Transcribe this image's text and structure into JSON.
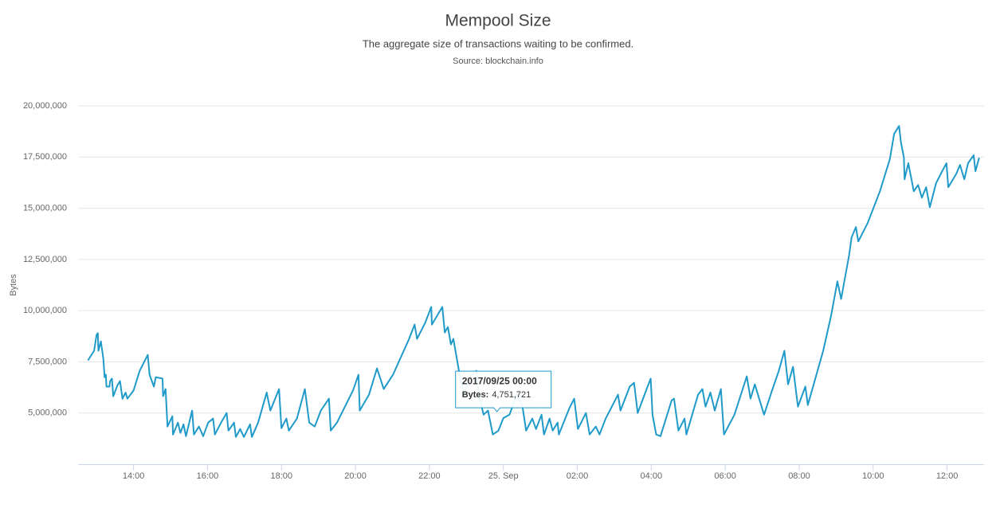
{
  "chart_data": {
    "type": "line",
    "title": "Mempool Size",
    "subtitle": "The aggregate size of transactions waiting to be confirmed.",
    "source": "Source: blockchain.info",
    "y_label": "Bytes",
    "grid": true,
    "xlim": [
      "2017-09-24 12:30",
      "2017-09-25 13:00"
    ],
    "xticks": [
      {
        "value": "2017-09-24 14:00",
        "label": "14:00"
      },
      {
        "value": "2017-09-24 16:00",
        "label": "16:00"
      },
      {
        "value": "2017-09-24 18:00",
        "label": "18:00"
      },
      {
        "value": "2017-09-24 20:00",
        "label": "20:00"
      },
      {
        "value": "2017-09-24 22:00",
        "label": "22:00"
      },
      {
        "value": "2017-09-25 00:00",
        "label": "25. Sep"
      },
      {
        "value": "2017-09-25 02:00",
        "label": "02:00"
      },
      {
        "value": "2017-09-25 04:00",
        "label": "04:00"
      },
      {
        "value": "2017-09-25 06:00",
        "label": "06:00"
      },
      {
        "value": "2017-09-25 08:00",
        "label": "08:00"
      },
      {
        "value": "2017-09-25 10:00",
        "label": "10:00"
      },
      {
        "value": "2017-09-25 12:00",
        "label": "12:00"
      }
    ],
    "ylim": [
      2500000,
      20000000
    ],
    "yticks": [
      {
        "value": 5000000,
        "label": "5,000,000"
      },
      {
        "value": 7500000,
        "label": "7,500,000"
      },
      {
        "value": 10000000,
        "label": "10,000,000"
      },
      {
        "value": 12500000,
        "label": "12,500,000"
      },
      {
        "value": 15000000,
        "label": "15,000,000"
      },
      {
        "value": 17500000,
        "label": "17,500,000"
      },
      {
        "value": 20000000,
        "label": "20,000,000"
      }
    ],
    "x": [
      "2017-09-24 12:46",
      "2017-09-24 12:56",
      "2017-09-24 13:00",
      "2017-09-24 13:02",
      "2017-09-24 13:03",
      "2017-09-24 13:07",
      "2017-09-24 13:11",
      "2017-09-24 13:13",
      "2017-09-24 13:15",
      "2017-09-24 13:16",
      "2017-09-24 13:21",
      "2017-09-24 13:22",
      "2017-09-24 13:25",
      "2017-09-24 13:27",
      "2017-09-24 13:34",
      "2017-09-24 13:38",
      "2017-09-24 13:42",
      "2017-09-24 13:47",
      "2017-09-24 13:50",
      "2017-09-24 14:00",
      "2017-09-24 14:10",
      "2017-09-24 14:23",
      "2017-09-24 14:26",
      "2017-09-24 14:33",
      "2017-09-24 14:36",
      "2017-09-24 14:47",
      "2017-09-24 14:48",
      "2017-09-24 14:52",
      "2017-09-24 14:55",
      "2017-09-24 15:03",
      "2017-09-24 15:04",
      "2017-09-24 15:12",
      "2017-09-24 15:16",
      "2017-09-24 15:21",
      "2017-09-24 15:25",
      "2017-09-24 15:35",
      "2017-09-24 15:38",
      "2017-09-24 15:46",
      "2017-09-24 15:53",
      "2017-09-24 16:01",
      "2017-09-24 16:09",
      "2017-09-24 16:12",
      "2017-09-24 16:22",
      "2017-09-24 16:31",
      "2017-09-24 16:34",
      "2017-09-24 16:43",
      "2017-09-24 16:46",
      "2017-09-24 16:53",
      "2017-09-24 16:59",
      "2017-09-24 17:09",
      "2017-09-24 17:12",
      "2017-09-24 17:22",
      "2017-09-24 17:36",
      "2017-09-24 17:42",
      "2017-09-24 17:56",
      "2017-09-24 18:00",
      "2017-09-24 18:08",
      "2017-09-24 18:12",
      "2017-09-24 18:25",
      "2017-09-24 18:38",
      "2017-09-24 18:45",
      "2017-09-24 18:54",
      "2017-09-24 19:04",
      "2017-09-24 19:17",
      "2017-09-24 19:20",
      "2017-09-24 19:30",
      "2017-09-24 19:56",
      "2017-09-24 20:05",
      "2017-09-24 20:07",
      "2017-09-24 20:22",
      "2017-09-24 20:35",
      "2017-09-24 20:46",
      "2017-09-24 21:01",
      "2017-09-24 21:27",
      "2017-09-24 21:36",
      "2017-09-24 21:40",
      "2017-09-24 21:53",
      "2017-09-24 22:03",
      "2017-09-24 22:04",
      "2017-09-24 22:21",
      "2017-09-24 22:25",
      "2017-09-24 22:30",
      "2017-09-24 22:35",
      "2017-09-24 22:39",
      "2017-09-24 22:49",
      "2017-09-24 22:56",
      "2017-09-24 23:06",
      "2017-09-24 23:16",
      "2017-09-24 23:20",
      "2017-09-24 23:28",
      "2017-09-24 23:35",
      "2017-09-24 23:43",
      "2017-09-24 23:52",
      "2017-09-25 00:00",
      "2017-09-25 00:10",
      "2017-09-25 00:23",
      "2017-09-25 00:31",
      "2017-09-25 00:37",
      "2017-09-25 00:47",
      "2017-09-25 00:53",
      "2017-09-25 01:02",
      "2017-09-25 01:06",
      "2017-09-25 01:15",
      "2017-09-25 01:20",
      "2017-09-25 01:28",
      "2017-09-25 01:30",
      "2017-09-25 01:47",
      "2017-09-25 01:55",
      "2017-09-25 02:01",
      "2017-09-25 02:14",
      "2017-09-25 02:20",
      "2017-09-25 02:30",
      "2017-09-25 02:36",
      "2017-09-25 02:46",
      "2017-09-25 03:06",
      "2017-09-25 03:10",
      "2017-09-25 03:25",
      "2017-09-25 03:32",
      "2017-09-25 03:38",
      "2017-09-25 03:54",
      "2017-09-25 03:59",
      "2017-09-25 04:02",
      "2017-09-25 04:08",
      "2017-09-25 04:15",
      "2017-09-25 04:33",
      "2017-09-25 04:37",
      "2017-09-25 04:44",
      "2017-09-25 04:54",
      "2017-09-25 04:57",
      "2017-09-25 05:16",
      "2017-09-25 05:23",
      "2017-09-25 05:28",
      "2017-09-25 05:36",
      "2017-09-25 05:43",
      "2017-09-25 05:53",
      "2017-09-25 05:58",
      "2017-09-25 06:15",
      "2017-09-25 06:35",
      "2017-09-25 06:41",
      "2017-09-25 06:48",
      "2017-09-25 06:57",
      "2017-09-25 07:03",
      "2017-09-25 07:16",
      "2017-09-25 07:27",
      "2017-09-25 07:36",
      "2017-09-25 07:42",
      "2017-09-25 07:50",
      "2017-09-25 07:58",
      "2017-09-25 08:10",
      "2017-09-25 08:14",
      "2017-09-25 08:39",
      "2017-09-25 08:52",
      "2017-09-25 09:02",
      "2017-09-25 09:08",
      "2017-09-25 09:21",
      "2017-09-25 09:25",
      "2017-09-25 09:32",
      "2017-09-25 09:36",
      "2017-09-25 09:51",
      "2017-09-25 10:11",
      "2017-09-25 10:27",
      "2017-09-25 10:34",
      "2017-09-25 10:42",
      "2017-09-25 10:45",
      "2017-09-25 10:50",
      "2017-09-25 10:51",
      "2017-09-25 10:57",
      "2017-09-25 11:06",
      "2017-09-25 11:13",
      "2017-09-25 11:19",
      "2017-09-25 11:26",
      "2017-09-25 11:32",
      "2017-09-25 11:42",
      "2017-09-25 11:52",
      "2017-09-25 11:59",
      "2017-09-25 12:02",
      "2017-09-25 12:15",
      "2017-09-25 12:21",
      "2017-09-25 12:28",
      "2017-09-25 12:34",
      "2017-09-25 12:43",
      "2017-09-25 12:46",
      "2017-09-25 12:52"
    ],
    "series": [
      {
        "name": "Bytes",
        "color": "#1f9ac9",
        "values": [
          7570000,
          8040000,
          8820000,
          8900000,
          8040000,
          8500000,
          7650000,
          6750000,
          6870000,
          6290000,
          6290000,
          6560000,
          6680000,
          5820000,
          6360000,
          6560000,
          5700000,
          6000000,
          5700000,
          6100000,
          7060000,
          7840000,
          6870000,
          6290000,
          6750000,
          6680000,
          5820000,
          6170000,
          4340000,
          4840000,
          3950000,
          4530000,
          4030000,
          4450000,
          3870000,
          5120000,
          3950000,
          4340000,
          3870000,
          4530000,
          4730000,
          3950000,
          4530000,
          5000000,
          4140000,
          4530000,
          3830000,
          4220000,
          3830000,
          4450000,
          3830000,
          4530000,
          6000000,
          5120000,
          6170000,
          4260000,
          4730000,
          4140000,
          4730000,
          6170000,
          4530000,
          4340000,
          5120000,
          5700000,
          4140000,
          4530000,
          6100000,
          6870000,
          5120000,
          5900000,
          7180000,
          6170000,
          6870000,
          8620000,
          9320000,
          8620000,
          9400000,
          10180000,
          9320000,
          10180000,
          8930000,
          9200000,
          8350000,
          8620000,
          6870000,
          5900000,
          6790000,
          7060000,
          5900000,
          4920000,
          5120000,
          3950000,
          4140000,
          4751721,
          4920000,
          6000000,
          5310000,
          4140000,
          4730000,
          4220000,
          4920000,
          3950000,
          4730000,
          4140000,
          4530000,
          3950000,
          5230000,
          5700000,
          4220000,
          5000000,
          3950000,
          4340000,
          3950000,
          4730000,
          5900000,
          5120000,
          6290000,
          6480000,
          5000000,
          6290000,
          6680000,
          4920000,
          3950000,
          3870000,
          5620000,
          5700000,
          4140000,
          4730000,
          3950000,
          5900000,
          6170000,
          5310000,
          6000000,
          5120000,
          6170000,
          3950000,
          4920000,
          6790000,
          5700000,
          6400000,
          5510000,
          4920000,
          6100000,
          7060000,
          8040000,
          6400000,
          7260000,
          5310000,
          6290000,
          5390000,
          8040000,
          9790000,
          11430000,
          10570000,
          12710000,
          13570000,
          14080000,
          13380000,
          14270000,
          15830000,
          17390000,
          18630000,
          19020000,
          18240000,
          17470000,
          16420000,
          17200000,
          15830000,
          16140000,
          15520000,
          16030000,
          15050000,
          16220000,
          16810000,
          17200000,
          16030000,
          16690000,
          17120000,
          16420000,
          17200000,
          17590000,
          16810000,
          17470000
        ]
      }
    ],
    "tooltip": {
      "x": "2017-09-25 00:00",
      "title": "2017/09/25 00:00",
      "label": "Bytes:",
      "value": 4751721,
      "value_label": "4,751,721"
    }
  }
}
